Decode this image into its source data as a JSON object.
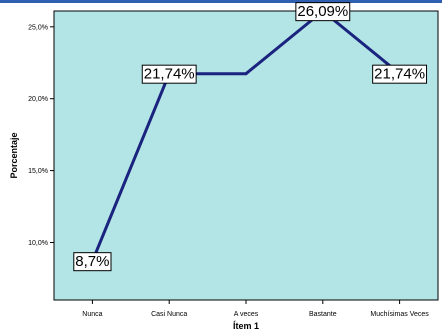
{
  "chart_data": {
    "type": "line",
    "categories": [
      "Nunca",
      "Casi Nunca",
      "A veces",
      "Bastante",
      "Muchísimas Veces"
    ],
    "values": [
      8.7,
      21.74,
      21.74,
      26.09,
      21.74
    ],
    "data_labels": [
      "8,7%",
      "21,74%",
      "",
      "26,09%",
      "21,74%"
    ],
    "xlabel": "Ítem 1",
    "ylabel": "Porcentaje",
    "ylim": [
      6.0,
      26.1
    ],
    "yticks": [
      10,
      15,
      20,
      25
    ],
    "ytick_labels": [
      "10,0%",
      "15,0%",
      "20,0%",
      "25,0%"
    ],
    "grid": false,
    "colors": {
      "plot_background": "#b3e4e6",
      "line": "#1a237e",
      "accent_strip": "#2f5fb0"
    }
  }
}
